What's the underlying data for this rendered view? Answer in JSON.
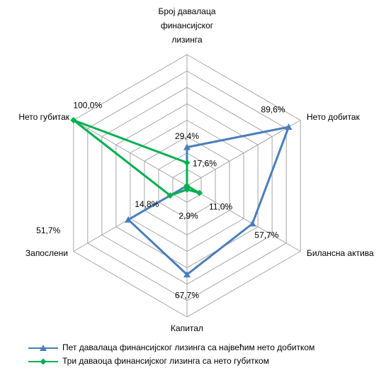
{
  "chart_data": {
    "type": "radar",
    "categories": [
      "Број давалаца финансијског лизинга",
      "Нето добитак",
      "Билансна актива",
      "Капитал",
      "Запослени",
      "Нето губитак"
    ],
    "ylim": [
      0,
      100
    ],
    "yticks": [
      0,
      12.5,
      25,
      37.5,
      50,
      62.5,
      75,
      87.5,
      100
    ],
    "grid": true,
    "legend": "bottom",
    "series": [
      {
        "name": "Пет давалаца финансијског лизинга са највећим нето добитком",
        "color": "#4a7ebb",
        "marker": "triangle",
        "values": [
          29.4,
          89.6,
          57.7,
          67.7,
          51.7,
          0
        ],
        "value_labels": [
          "29,4%",
          "89,6%",
          "57,7%",
          "67,7%",
          "51,7%",
          null
        ]
      },
      {
        "name": "Три даваоца финансијског лизинга са нето губитком",
        "color": "#00b050",
        "marker": "diamond",
        "values": [
          17.6,
          0,
          11.0,
          2.9,
          14.8,
          100.0
        ],
        "value_labels": [
          "17,6%",
          null,
          "11,0%",
          "2,9%",
          "14,8%",
          "100,0%"
        ]
      }
    ]
  }
}
